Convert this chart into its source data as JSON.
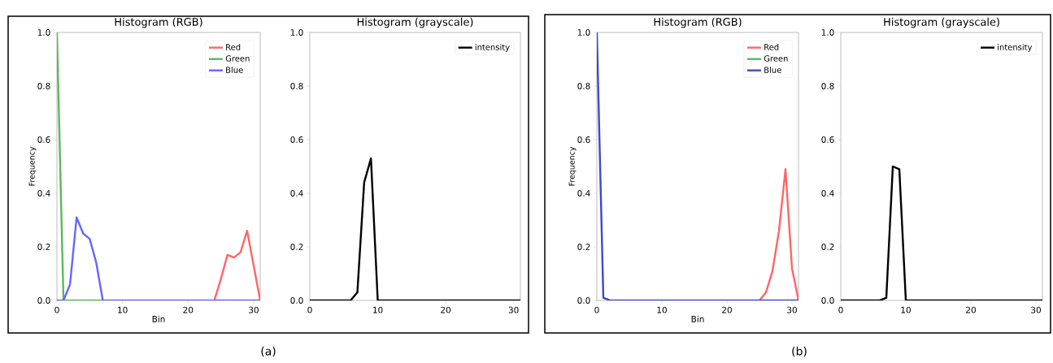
{
  "chart_data": [
    {
      "type": "line",
      "title": "Histogram (RGB)",
      "xlabel": "Bin",
      "ylabel": "Frequency",
      "x": [
        0,
        1,
        2,
        3,
        4,
        5,
        6,
        7,
        8,
        9,
        10,
        11,
        12,
        13,
        14,
        15,
        16,
        17,
        18,
        19,
        20,
        21,
        22,
        23,
        24,
        25,
        26,
        27,
        28,
        29,
        30,
        31
      ],
      "series": [
        {
          "name": "Red",
          "color": "#ff6666",
          "values": [
            null,
            null,
            null,
            null,
            null,
            null,
            null,
            null,
            null,
            null,
            null,
            null,
            null,
            null,
            null,
            null,
            null,
            null,
            null,
            null,
            null,
            null,
            null,
            null,
            0,
            0.08,
            0.17,
            0.16,
            0.18,
            0.26,
            0.13,
            0
          ]
        },
        {
          "name": "Green",
          "color": "#5cb85c",
          "values": [
            1.0,
            0,
            0,
            0,
            0,
            0,
            0,
            0,
            null,
            null,
            null,
            null,
            null,
            null,
            null,
            null,
            null,
            null,
            null,
            null,
            null,
            null,
            null,
            null,
            null,
            null,
            null,
            null,
            null,
            null,
            null,
            null
          ]
        },
        {
          "name": "Blue",
          "color": "#6666ff",
          "values": [
            0,
            0,
            0.06,
            0.31,
            0.25,
            0.23,
            0.14,
            0,
            0,
            0,
            0,
            0,
            0,
            0,
            0,
            0,
            0,
            0,
            0,
            0,
            0,
            0,
            0,
            0,
            0,
            0,
            0,
            0,
            0,
            0,
            0,
            0
          ]
        }
      ],
      "xlim": [
        0,
        31
      ],
      "ylim": [
        0,
        1
      ],
      "xticks": [
        0,
        10,
        20,
        30
      ],
      "yticks": [
        {
          "value": 0,
          "label": "0.0"
        },
        {
          "value": 0.2,
          "label": "0.2"
        },
        {
          "value": 0.4,
          "label": "0.4"
        },
        {
          "value": 0.6,
          "label": "0.6"
        },
        {
          "value": 0.8,
          "label": "0.8"
        },
        {
          "value": 1,
          "label": "1.0"
        }
      ],
      "legend": "top right"
    },
    {
      "type": "line",
      "title": "Histogram (grayscale)",
      "annotations": [
        "(a)"
      ],
      "x": [
        0,
        1,
        2,
        3,
        4,
        5,
        6,
        7,
        8,
        9,
        10,
        11,
        12,
        13,
        14,
        15,
        16,
        17,
        18,
        19,
        20,
        21,
        22,
        23,
        24,
        25,
        26,
        27,
        28,
        29,
        30,
        31
      ],
      "series": [
        {
          "name": "intensity",
          "color": "#000000",
          "values": [
            0,
            0,
            0,
            0,
            0,
            0,
            0,
            0.03,
            0.44,
            0.53,
            0,
            0,
            0,
            0,
            0,
            0,
            0,
            0,
            0,
            0,
            0,
            0,
            0,
            0,
            0,
            0,
            0,
            0,
            0,
            0,
            0,
            0
          ]
        }
      ],
      "xlim": [
        0,
        31
      ],
      "ylim": [
        0,
        1
      ],
      "xticks": [
        0,
        10,
        20,
        30
      ],
      "yticks": [
        {
          "value": 0,
          "label": "0.0"
        },
        {
          "value": 0.2,
          "label": "0.2"
        },
        {
          "value": 0.4,
          "label": "0.4"
        },
        {
          "value": 0.6,
          "label": "0.6"
        },
        {
          "value": 0.8,
          "label": "0.8"
        },
        {
          "value": 1,
          "label": "1.0"
        }
      ],
      "legend": "top right"
    },
    {
      "type": "line",
      "title": "Histogram (RGB)",
      "xlabel": "Bin",
      "ylabel": "Frequency",
      "x": [
        0,
        1,
        2,
        3,
        4,
        5,
        6,
        7,
        8,
        9,
        10,
        11,
        12,
        13,
        14,
        15,
        16,
        17,
        18,
        19,
        20,
        21,
        22,
        23,
        24,
        25,
        26,
        27,
        28,
        29,
        30,
        31
      ],
      "series": [
        {
          "name": "Red",
          "color": "#ff6666",
          "values": [
            null,
            null,
            null,
            null,
            null,
            null,
            null,
            null,
            null,
            null,
            null,
            null,
            null,
            null,
            null,
            null,
            null,
            null,
            null,
            null,
            null,
            null,
            null,
            null,
            null,
            0,
            0.03,
            0.11,
            0.26,
            0.49,
            0.12,
            0
          ]
        },
        {
          "name": "Green",
          "color": "#5cb85c",
          "values": [
            null,
            null,
            null,
            null,
            null,
            null,
            null,
            null,
            null,
            null,
            null,
            null,
            null,
            null,
            null,
            null,
            null,
            null,
            null,
            null,
            null,
            null,
            null,
            null,
            null,
            null,
            null,
            null,
            null,
            null,
            null,
            null
          ]
        },
        {
          "name": "Blue",
          "color": "#3f48cc",
          "values": [
            1.0,
            0.01,
            0,
            0,
            0,
            0,
            0,
            0,
            0,
            0,
            0,
            0,
            0,
            0,
            0,
            0,
            0,
            0,
            0,
            0,
            0,
            0,
            0,
            0,
            0,
            0,
            0,
            0,
            0,
            0,
            0,
            0
          ]
        }
      ],
      "xlim": [
        0,
        31
      ],
      "ylim": [
        0,
        1
      ],
      "xticks": [
        0,
        10,
        20,
        30
      ],
      "yticks": [
        {
          "value": 0,
          "label": "0.0"
        },
        {
          "value": 0.2,
          "label": "0.2"
        },
        {
          "value": 0.4,
          "label": "0.4"
        },
        {
          "value": 0.6,
          "label": "0.6"
        },
        {
          "value": 0.8,
          "label": "0.8"
        },
        {
          "value": 1,
          "label": "1.0"
        }
      ],
      "legend": "top right"
    },
    {
      "type": "line",
      "title": "Histogram (grayscale)",
      "annotations": [
        "(b)"
      ],
      "x": [
        0,
        1,
        2,
        3,
        4,
        5,
        6,
        7,
        8,
        9,
        10,
        11,
        12,
        13,
        14,
        15,
        16,
        17,
        18,
        19,
        20,
        21,
        22,
        23,
        24,
        25,
        26,
        27,
        28,
        29,
        30,
        31
      ],
      "series": [
        {
          "name": "intensity",
          "color": "#000000",
          "values": [
            0,
            0,
            0,
            0,
            0,
            0,
            0,
            0.01,
            0.5,
            0.49,
            0,
            0,
            0,
            0,
            0,
            0,
            0,
            0,
            0,
            0,
            0,
            0,
            0,
            0,
            0,
            0,
            0,
            0,
            0,
            0,
            0,
            0
          ]
        }
      ],
      "xlim": [
        0,
        31
      ],
      "ylim": [
        0,
        1
      ],
      "xticks": [
        0,
        10,
        20,
        30
      ],
      "yticks": [
        {
          "value": 0,
          "label": "0.0"
        },
        {
          "value": 0.2,
          "label": "0.2"
        },
        {
          "value": 0.4,
          "label": "0.4"
        },
        {
          "value": 0.6,
          "label": "0.6"
        },
        {
          "value": 0.8,
          "label": "0.8"
        },
        {
          "value": 1,
          "label": "1.0"
        }
      ],
      "legend": "top right"
    }
  ]
}
